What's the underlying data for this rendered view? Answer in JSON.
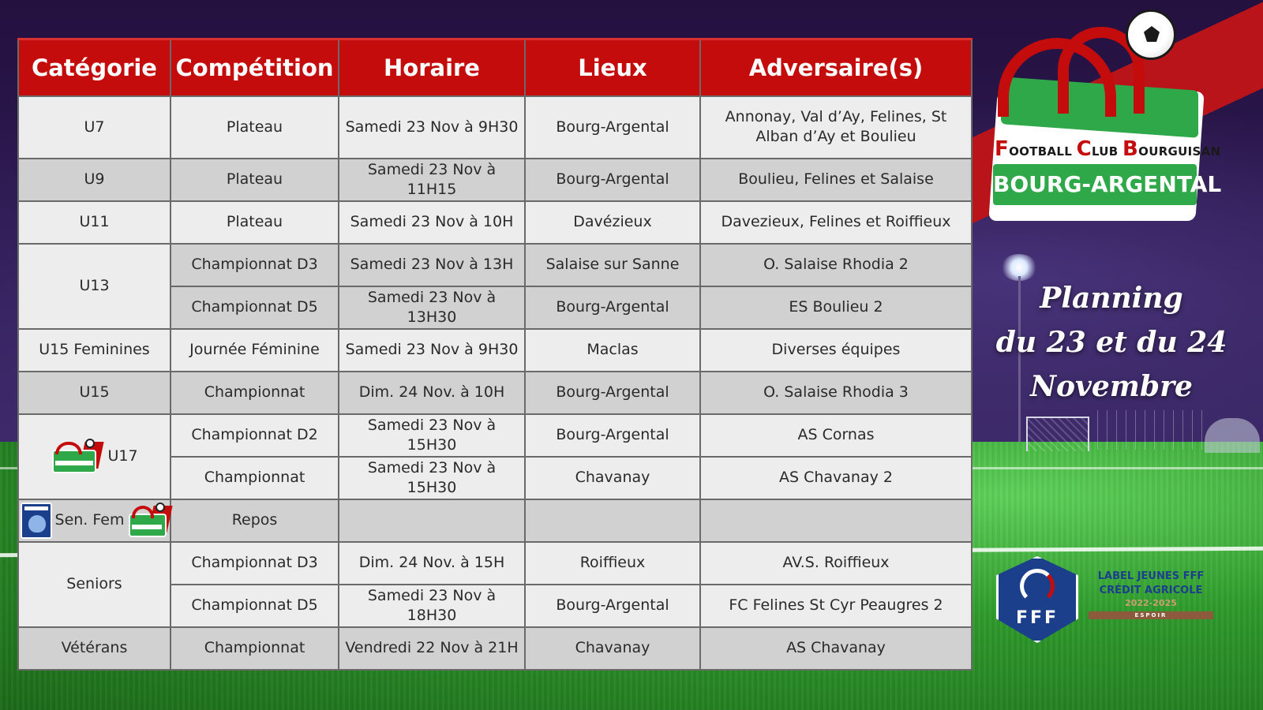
{
  "table": {
    "headers": [
      "Catégorie",
      "Compétition",
      "Horaire",
      "Lieux",
      "Adversaire(s)"
    ],
    "rows": [
      {
        "categorie": "U7",
        "competition": "Plateau",
        "horaire": "Samedi 23 Nov à 9H30",
        "lieux": "Bourg-Argental",
        "adversaires": "Annonay, Val d’Ay, Felines, St Alban d’Ay et Boulieu"
      },
      {
        "categorie": "U9",
        "competition": "Plateau",
        "horaire": "Samedi 23 Nov à 11H15",
        "lieux": "Bourg-Argental",
        "adversaires": "Boulieu, Felines et Salaise"
      },
      {
        "categorie": "U11",
        "competition": "Plateau",
        "horaire": "Samedi 23 Nov à 10H",
        "lieux": "Davézieux",
        "adversaires": "Davezieux, Felines et Roiffieux"
      },
      {
        "categorie": "U13",
        "competition": "Championnat D3",
        "horaire": "Samedi 23 Nov à 13H",
        "lieux": "Salaise sur Sanne",
        "adversaires": "O. Salaise Rhodia 2"
      },
      {
        "categorie": "",
        "competition": "Championnat D5",
        "horaire": "Samedi 23 Nov à 13H30",
        "lieux": "Bourg-Argental",
        "adversaires": "ES Boulieu 2"
      },
      {
        "categorie": "U15 Feminines",
        "competition": "Journée Féminine",
        "horaire": "Samedi 23 Nov à 9H30",
        "lieux": "Maclas",
        "adversaires": "Diverses équipes"
      },
      {
        "categorie": "U15",
        "competition": "Championnat",
        "horaire": "Dim. 24 Nov. à 10H",
        "lieux": "Bourg-Argental",
        "adversaires": "O. Salaise Rhodia 3"
      },
      {
        "categorie": "U17",
        "competition": "Championnat D2",
        "horaire": "Samedi 23 Nov à 15H30",
        "lieux": "Bourg-Argental",
        "adversaires": "AS Cornas"
      },
      {
        "categorie": "",
        "competition": "Championnat",
        "horaire": "Samedi 23 Nov à 15H30",
        "lieux": "Chavanay",
        "adversaires": "AS Chavanay 2"
      },
      {
        "categorie": "Sen. Fem",
        "competition": "Repos",
        "horaire": "",
        "lieux": "",
        "adversaires": ""
      },
      {
        "categorie": "Seniors",
        "competition": "Championnat D3",
        "horaire": "Dim. 24 Nov. à 15H",
        "lieux": "Roiffieux",
        "adversaires": "AV.S. Roiffieux"
      },
      {
        "categorie": "",
        "competition": "Championnat D5",
        "horaire": "Samedi 23 Nov à 18H30",
        "lieux": "Bourg-Argental",
        "adversaires": "FC Felines St Cyr Peaugres 2"
      },
      {
        "categorie": "Vétérans",
        "competition": "Championnat",
        "horaire": "Vendredi 22 Nov à 21H",
        "lieux": "Chavanay",
        "adversaires": "AS Chavanay"
      }
    ]
  },
  "club_logo": {
    "name_parts": [
      "F",
      "OOTBALL ",
      "C",
      "LUB ",
      "B",
      "OURGUISAN"
    ],
    "town": "BOURG-ARGENTAL"
  },
  "planning_title": [
    "Planning",
    "du 23 et du 24",
    "Novembre"
  ],
  "fff_label": {
    "badge_text": "FFF",
    "line1": "LABEL JEUNES FFF",
    "line2": "CRÉDIT AGRICOLE",
    "line3": "2022-2025",
    "line4": "ESPOIR"
  },
  "colors": {
    "header_red": "#c40c0c",
    "row_light": "#ededed",
    "row_dark": "#d1d1d1",
    "club_green": "#2fa84a",
    "fff_blue": "#1c3f8c"
  },
  "icons": [
    "football-club-bourguisan-logo",
    "sg-pirallon-wolf-logo",
    "fff-rooster-icon"
  ]
}
